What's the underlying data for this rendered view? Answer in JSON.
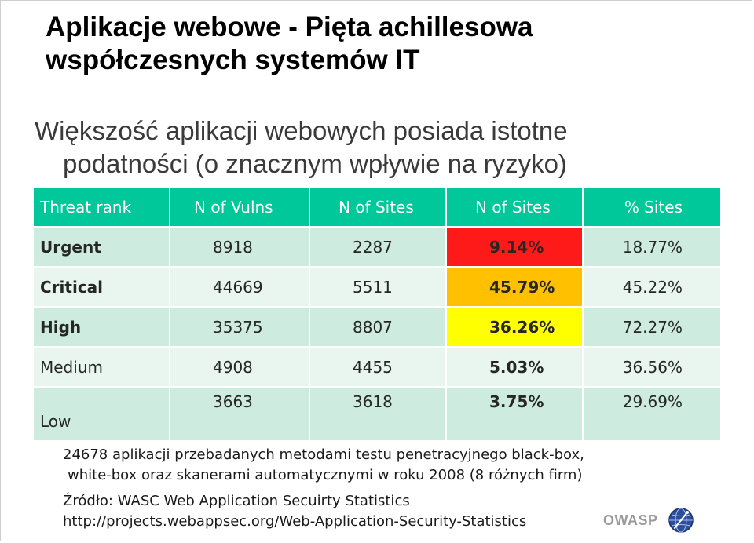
{
  "title": {
    "line1": "Aplikacje webowe - Pięta achillesowa",
    "line2": "współczesnych systemów IT"
  },
  "subtitle": {
    "line1": "Większość aplikacji webowych posiada istotne",
    "line2": "podatności (o znacznym wpływie na ryzyko)"
  },
  "table": {
    "headers": [
      "Threat rank",
      "N of Vulns",
      "N of Sites",
      "N of Sites",
      "% Sites"
    ],
    "rows": [
      {
        "rank": "Urgent",
        "vulns": "8918",
        "sites": "2287",
        "pct_sites": "9.14%",
        "pct_all": "18.77%"
      },
      {
        "rank": "Critical",
        "vulns": "44669",
        "sites": "5511",
        "pct_sites": "45.79%",
        "pct_all": "45.22%"
      },
      {
        "rank": "High",
        "vulns": "35375",
        "sites": "8807",
        "pct_sites": "36.26%",
        "pct_all": "72.27%"
      },
      {
        "rank": "Medium",
        "vulns": "4908",
        "sites": "4455",
        "pct_sites": "5.03%",
        "pct_all": "36.56%"
      },
      {
        "rank": "Low",
        "vulns": "3663",
        "sites": "3618",
        "pct_sites": "3.75%",
        "pct_all": "29.69%"
      }
    ],
    "colors": {
      "header": "#00c89a",
      "urgent": "#ff1a1a",
      "critical": "#ffc000",
      "high": "#ffff00"
    }
  },
  "notes": {
    "line1": "24678 aplikacji przebadanych metodami testu penetracyjnego black-box,",
    "line2": "white-box oraz skanerami automatycznymi w roku 2008 (8 różnych firm)"
  },
  "source": {
    "line1": "Źródło: WASC Web Application Secuirty Statistics",
    "line2": "http://projects.webappsec.org/Web-Application-Security-Statistics"
  },
  "logo": {
    "text": "OWASP",
    "icon": "owasp-globe-icon"
  }
}
